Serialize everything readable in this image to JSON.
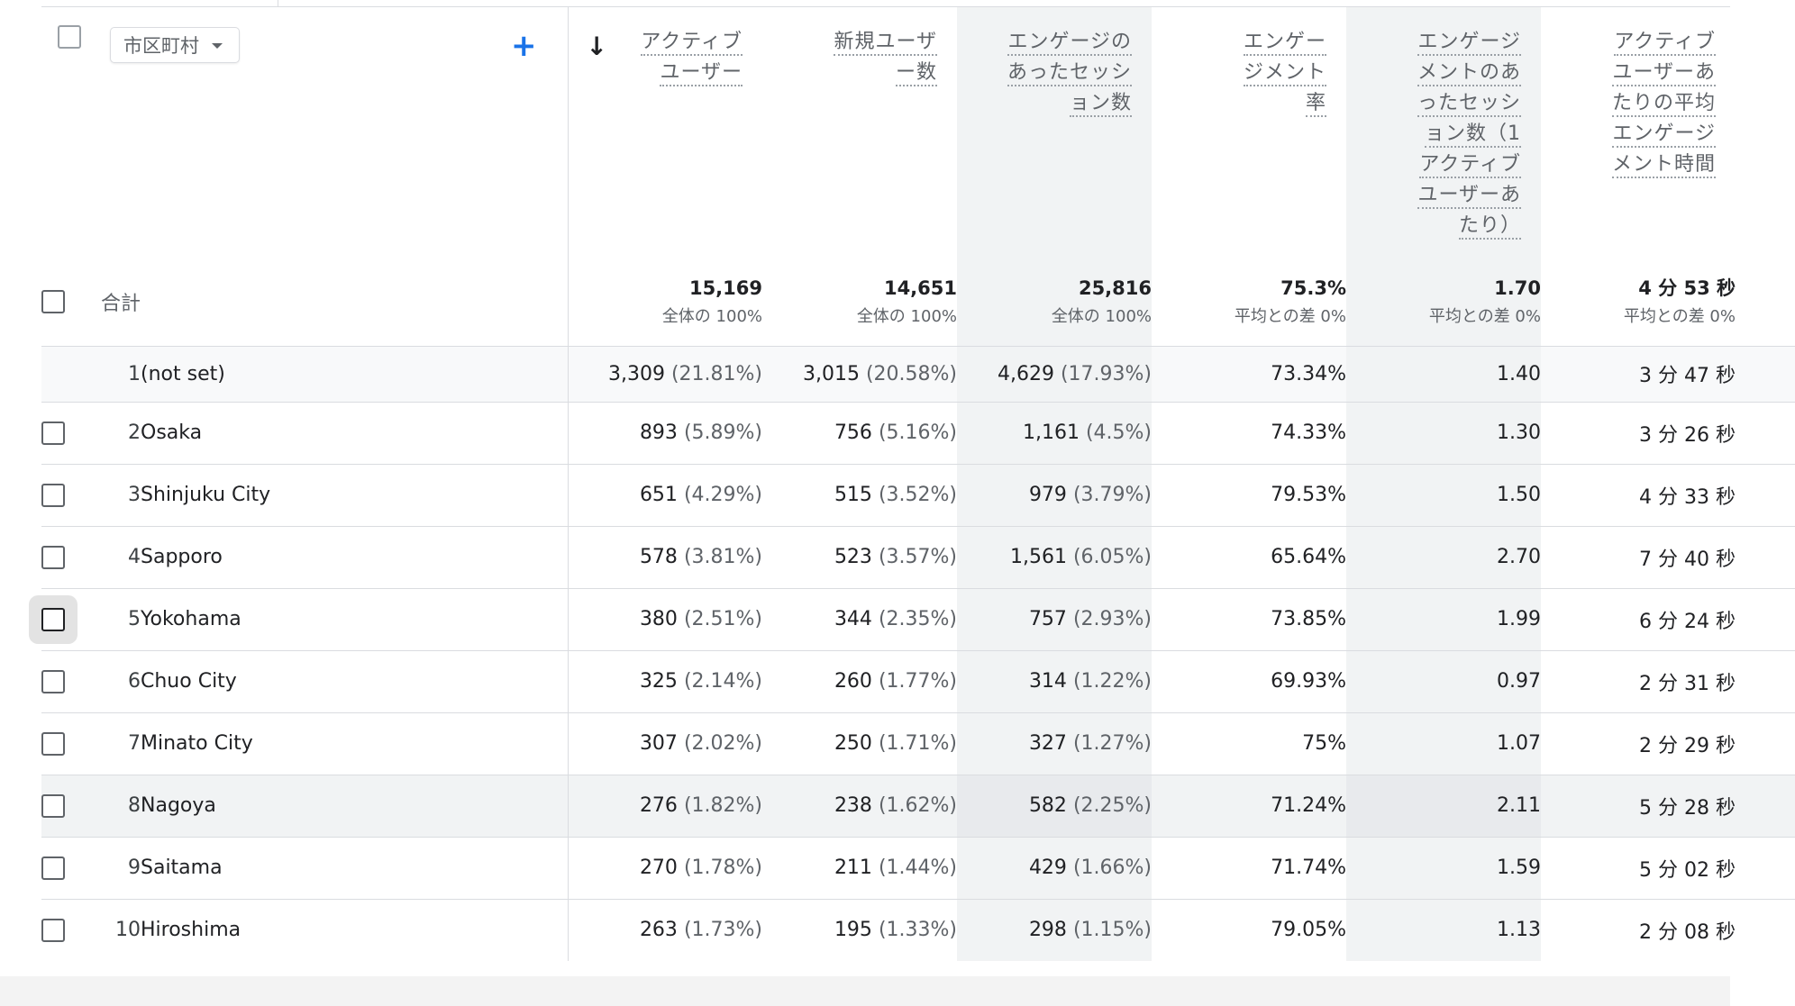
{
  "dimension": {
    "select_label": "市区町村",
    "add_label": "+"
  },
  "sort_arrow": "↓",
  "columns": [
    {
      "key": "active_users",
      "label": "アクティブユーザー"
    },
    {
      "key": "new_users",
      "label": "新規ユーザー数"
    },
    {
      "key": "engaged_sessions",
      "label": "エンゲージのあったセッション数"
    },
    {
      "key": "engagement_rate",
      "label": "エンゲージメント率"
    },
    {
      "key": "engaged_sessions_per_user",
      "label": "エンゲージメントのあったセッション数（1アクティブユーザーあたり）"
    },
    {
      "key": "avg_engagement_time",
      "label": "アクティブユーザーあたりの平均エンゲージメント時間"
    }
  ],
  "totals": {
    "label": "合計",
    "active_users": {
      "value": "15,169",
      "sub": "全体の 100%"
    },
    "new_users": {
      "value": "14,651",
      "sub": "全体の 100%"
    },
    "engaged_sessions": {
      "value": "25,816",
      "sub": "全体の 100%"
    },
    "engagement_rate": {
      "value": "75.3%",
      "sub": "平均との差 0%"
    },
    "engaged_sessions_per_user": {
      "value": "1.70",
      "sub": "平均との差 0%"
    },
    "avg_engagement_time": {
      "value": "4 分 53 秒",
      "sub": "平均との差 0%"
    }
  },
  "rows": [
    {
      "index": "1",
      "city": "(not set)",
      "active_users": "3,309",
      "active_users_pct": "(21.81%)",
      "new_users": "3,015",
      "new_users_pct": "(20.58%)",
      "engaged_sessions": "4,629",
      "engaged_sessions_pct": "(17.93%)",
      "engagement_rate": "73.34%",
      "engaged_sessions_per_user": "1.40",
      "avg_engagement_time": "3 分 47 秒"
    },
    {
      "index": "2",
      "city": "Osaka",
      "active_users": "893",
      "active_users_pct": "(5.89%)",
      "new_users": "756",
      "new_users_pct": "(5.16%)",
      "engaged_sessions": "1,161",
      "engaged_sessions_pct": "(4.5%)",
      "engagement_rate": "74.33%",
      "engaged_sessions_per_user": "1.30",
      "avg_engagement_time": "3 分 26 秒"
    },
    {
      "index": "3",
      "city": "Shinjuku City",
      "active_users": "651",
      "active_users_pct": "(4.29%)",
      "new_users": "515",
      "new_users_pct": "(3.52%)",
      "engaged_sessions": "979",
      "engaged_sessions_pct": "(3.79%)",
      "engagement_rate": "79.53%",
      "engaged_sessions_per_user": "1.50",
      "avg_engagement_time": "4 分 33 秒"
    },
    {
      "index": "4",
      "city": "Sapporo",
      "active_users": "578",
      "active_users_pct": "(3.81%)",
      "new_users": "523",
      "new_users_pct": "(3.57%)",
      "engaged_sessions": "1,561",
      "engaged_sessions_pct": "(6.05%)",
      "engagement_rate": "65.64%",
      "engaged_sessions_per_user": "2.70",
      "avg_engagement_time": "7 分 40 秒"
    },
    {
      "index": "5",
      "city": "Yokohama",
      "active_users": "380",
      "active_users_pct": "(2.51%)",
      "new_users": "344",
      "new_users_pct": "(2.35%)",
      "engaged_sessions": "757",
      "engaged_sessions_pct": "(2.93%)",
      "engagement_rate": "73.85%",
      "engaged_sessions_per_user": "1.99",
      "avg_engagement_time": "6 分 24 秒"
    },
    {
      "index": "6",
      "city": "Chuo City",
      "active_users": "325",
      "active_users_pct": "(2.14%)",
      "new_users": "260",
      "new_users_pct": "(1.77%)",
      "engaged_sessions": "314",
      "engaged_sessions_pct": "(1.22%)",
      "engagement_rate": "69.93%",
      "engaged_sessions_per_user": "0.97",
      "avg_engagement_time": "2 分 31 秒"
    },
    {
      "index": "7",
      "city": "Minato City",
      "active_users": "307",
      "active_users_pct": "(2.02%)",
      "new_users": "250",
      "new_users_pct": "(1.71%)",
      "engaged_sessions": "327",
      "engaged_sessions_pct": "(1.27%)",
      "engagement_rate": "75%",
      "engaged_sessions_per_user": "1.07",
      "avg_engagement_time": "2 分 29 秒"
    },
    {
      "index": "8",
      "city": "Nagoya",
      "active_users": "276",
      "active_users_pct": "(1.82%)",
      "new_users": "238",
      "new_users_pct": "(1.62%)",
      "engaged_sessions": "582",
      "engaged_sessions_pct": "(2.25%)",
      "engagement_rate": "71.24%",
      "engaged_sessions_per_user": "2.11",
      "avg_engagement_time": "5 分 28 秒"
    },
    {
      "index": "9",
      "city": "Saitama",
      "active_users": "270",
      "active_users_pct": "(1.78%)",
      "new_users": "211",
      "new_users_pct": "(1.44%)",
      "engaged_sessions": "429",
      "engaged_sessions_pct": "(1.66%)",
      "engagement_rate": "71.74%",
      "engaged_sessions_per_user": "1.59",
      "avg_engagement_time": "5 分 02 秒"
    },
    {
      "index": "10",
      "city": "Hiroshima",
      "active_users": "263",
      "active_users_pct": "(1.73%)",
      "new_users": "195",
      "new_users_pct": "(1.33%)",
      "engaged_sessions": "298",
      "engaged_sessions_pct": "(1.15%)",
      "engagement_rate": "79.05%",
      "engaged_sessions_per_user": "1.13",
      "avg_engagement_time": "2 分 08 秒"
    }
  ]
}
